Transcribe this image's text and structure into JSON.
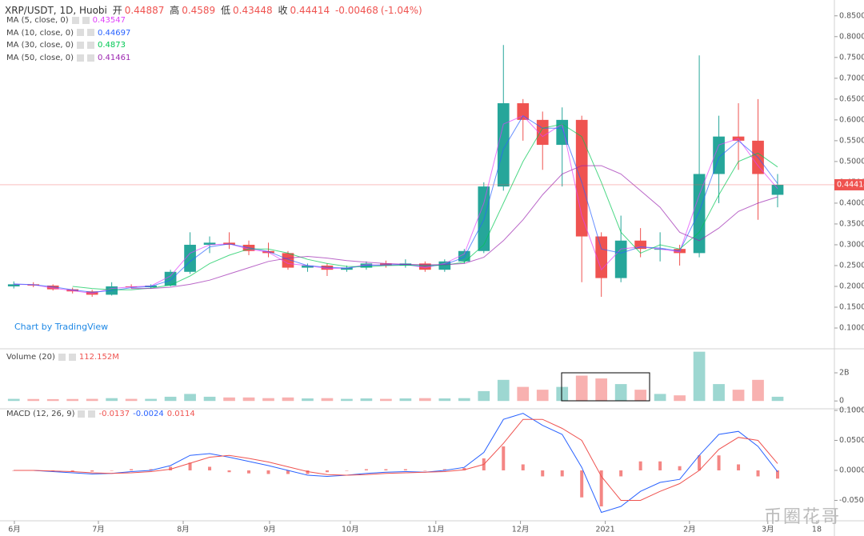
{
  "chart_data": [
    {
      "type": "candlestick",
      "header": {
        "title": "XRP/USDT, 1D, Huobi",
        "open_label": "开",
        "open": 0.44887,
        "high_label": "高",
        "high": 0.4589,
        "low_label": "低",
        "low": 0.43448,
        "close_label": "收",
        "close": 0.44414,
        "change": -0.00468,
        "change_pct": {
          "value": -1.04,
          "label": "(-1.04%)"
        },
        "color": "#ef5350"
      },
      "categories": [
        null,
        null,
        null,
        null,
        null,
        null,
        null,
        null,
        null,
        null,
        null,
        null,
        null,
        null,
        null,
        null,
        null,
        null,
        null,
        null,
        null,
        null,
        null,
        null,
        null,
        null,
        null,
        null,
        null,
        null,
        null,
        null,
        null,
        null,
        null,
        null,
        null,
        null,
        null,
        null
      ],
      "open": [
        0.2,
        0.205,
        0.202,
        0.193,
        0.188,
        0.18,
        0.2,
        0.198,
        0.202,
        0.235,
        0.3,
        0.305,
        0.3,
        0.285,
        0.28,
        0.245,
        0.25,
        0.24,
        0.245,
        0.255,
        0.25,
        0.255,
        0.24,
        0.26,
        0.285,
        0.44,
        0.64,
        0.6,
        0.54,
        0.6,
        0.32,
        0.22,
        0.31,
        0.29,
        0.29,
        0.28,
        0.47,
        0.56,
        0.55,
        0.42
      ],
      "high": [
        0.212,
        0.21,
        0.205,
        0.197,
        0.192,
        0.21,
        0.205,
        0.205,
        0.24,
        0.33,
        0.32,
        0.33,
        0.31,
        0.305,
        0.285,
        0.255,
        0.255,
        0.25,
        0.26,
        0.262,
        0.265,
        0.26,
        0.265,
        0.29,
        0.45,
        0.78,
        0.65,
        0.62,
        0.63,
        0.61,
        0.33,
        0.37,
        0.34,
        0.33,
        0.3,
        0.755,
        0.61,
        0.64,
        0.65,
        0.47
      ],
      "low": [
        0.195,
        0.198,
        0.19,
        0.183,
        0.175,
        0.178,
        0.195,
        0.195,
        0.2,
        0.23,
        0.28,
        0.29,
        0.275,
        0.27,
        0.24,
        0.235,
        0.225,
        0.235,
        0.24,
        0.245,
        0.245,
        0.235,
        0.235,
        0.255,
        0.28,
        0.43,
        0.55,
        0.48,
        0.44,
        0.21,
        0.175,
        0.21,
        0.27,
        0.26,
        0.25,
        0.27,
        0.4,
        0.48,
        0.36,
        0.39
      ],
      "close": [
        0.205,
        0.202,
        0.193,
        0.188,
        0.18,
        0.2,
        0.198,
        0.202,
        0.235,
        0.3,
        0.305,
        0.3,
        0.285,
        0.28,
        0.245,
        0.25,
        0.24,
        0.245,
        0.255,
        0.25,
        0.255,
        0.24,
        0.26,
        0.285,
        0.44,
        0.64,
        0.6,
        0.54,
        0.6,
        0.32,
        0.22,
        0.31,
        0.29,
        0.29,
        0.28,
        0.47,
        0.56,
        0.55,
        0.47,
        0.444
      ],
      "up_color": "#26a69a",
      "down_color": "#ef5350",
      "ma": [
        {
          "name": "MA (5, close, 0)",
          "last": 0.43547,
          "color": "#e040fb",
          "values": [
            0.205,
            0.204,
            0.196,
            0.19,
            0.183,
            0.195,
            0.199,
            0.201,
            0.225,
            0.28,
            0.3,
            0.302,
            0.29,
            0.282,
            0.255,
            0.25,
            0.243,
            0.244,
            0.252,
            0.251,
            0.253,
            0.245,
            0.255,
            0.278,
            0.4,
            0.59,
            0.61,
            0.56,
            0.59,
            0.37,
            0.24,
            0.29,
            0.295,
            0.29,
            0.283,
            0.42,
            0.54,
            0.555,
            0.49,
            0.435
          ]
        },
        {
          "name": "MA (10, close, 0)",
          "last": 0.44697,
          "color": "#2962ff",
          "values": [
            0.206,
            0.204,
            0.199,
            0.192,
            0.186,
            0.19,
            0.197,
            0.2,
            0.215,
            0.26,
            0.295,
            0.302,
            0.293,
            0.284,
            0.265,
            0.25,
            0.246,
            0.244,
            0.25,
            0.252,
            0.252,
            0.248,
            0.252,
            0.27,
            0.36,
            0.53,
            0.61,
            0.58,
            0.58,
            0.45,
            0.29,
            0.28,
            0.295,
            0.292,
            0.285,
            0.38,
            0.51,
            0.55,
            0.51,
            0.447
          ]
        },
        {
          "name": "MA (30, close, 0)",
          "last": 0.4873,
          "color": "#00c853",
          "values": [
            null,
            null,
            null,
            0.2,
            0.195,
            0.192,
            0.192,
            0.196,
            0.203,
            0.225,
            0.255,
            0.275,
            0.29,
            0.29,
            0.28,
            0.265,
            0.255,
            0.248,
            0.247,
            0.25,
            0.251,
            0.25,
            0.251,
            0.258,
            0.3,
            0.4,
            0.5,
            0.58,
            0.59,
            0.56,
            0.45,
            0.33,
            0.28,
            0.3,
            0.29,
            0.33,
            0.42,
            0.5,
            0.52,
            0.487
          ]
        },
        {
          "name": "MA (50, close, 0)",
          "last": 0.41461,
          "color": "#9c27b0",
          "values": [
            null,
            null,
            null,
            null,
            null,
            null,
            0.195,
            0.195,
            0.198,
            0.205,
            0.215,
            0.23,
            0.245,
            0.26,
            0.268,
            0.272,
            0.268,
            0.262,
            0.258,
            0.255,
            0.253,
            0.252,
            0.252,
            0.255,
            0.27,
            0.31,
            0.36,
            0.42,
            0.47,
            0.49,
            0.49,
            0.47,
            0.43,
            0.39,
            0.33,
            0.31,
            0.34,
            0.38,
            0.4,
            0.415
          ]
        }
      ],
      "xlim": [
        -0.5,
        41.9
      ],
      "xticks": [
        {
          "value": 0.03,
          "label": "6月"
        },
        {
          "value": 4.32,
          "label": "7月"
        },
        {
          "value": 8.65,
          "label": "8月"
        },
        {
          "value": 13.06,
          "label": "9月"
        },
        {
          "value": 17.18,
          "label": "10月"
        },
        {
          "value": 21.55,
          "label": "11月"
        },
        {
          "value": 25.87,
          "label": "12月"
        },
        {
          "value": 30.2,
          "label": "2021"
        },
        {
          "value": 34.5,
          "label": "2月"
        },
        {
          "value": 38.5,
          "label": "3月"
        },
        {
          "value": 41.0,
          "label": "18"
        }
      ],
      "ylim": [
        0.052,
        0.888
      ],
      "yticks": [
        {
          "value": 0.1,
          "label": "0.10000"
        },
        {
          "value": 0.15,
          "label": "0.15000"
        },
        {
          "value": 0.2,
          "label": "0.20000"
        },
        {
          "value": 0.25,
          "label": "0.25000"
        },
        {
          "value": 0.3,
          "label": "0.30000"
        },
        {
          "value": 0.35,
          "label": "0.35000"
        },
        {
          "value": 0.4,
          "label": "0.40000"
        },
        {
          "value": 0.45,
          "label": "0.45000"
        },
        {
          "value": 0.5,
          "label": "0.50000"
        },
        {
          "value": 0.55,
          "label": "0.55000"
        },
        {
          "value": 0.6,
          "label": "0.60000"
        },
        {
          "value": 0.65,
          "label": "0.65000"
        },
        {
          "value": 0.7,
          "label": "0.70000"
        },
        {
          "value": 0.75,
          "label": "0.75000"
        },
        {
          "value": 0.8,
          "label": "0.80000"
        },
        {
          "value": 0.85,
          "label": "0.85000"
        }
      ],
      "branding": "Chart by TradingView",
      "watermark": "币圈花哥"
    },
    {
      "type": "bar",
      "title": "Volume (20)",
      "last": {
        "value": 112152000,
        "label": "112.152M"
      },
      "last_color": "#ef5350",
      "values": [
        150000000,
        140000000,
        130000000,
        140000000,
        150000000,
        200000000,
        150000000,
        150000000,
        300000000,
        500000000,
        300000000,
        250000000,
        250000000,
        200000000,
        250000000,
        180000000,
        200000000,
        150000000,
        180000000,
        150000000,
        180000000,
        200000000,
        180000000,
        200000000,
        700000000,
        1500000000,
        1000000000,
        800000000,
        1000000000,
        1800000000,
        1600000000,
        1200000000,
        800000000,
        500000000,
        400000000,
        3500000000,
        1200000000,
        800000000,
        1500000000,
        300000000
      ],
      "ylim": [
        -500000000,
        3650000000
      ],
      "yticks": [
        0,
        {
          "value": 2000000000,
          "label": "2B"
        }
      ]
    },
    {
      "type": "macd",
      "title": "MACD (12, 26, 9)",
      "series": [
        {
          "color": "#ef5350",
          "last": -0.0137,
          "values": [
            0,
            0,
            -0.001,
            -0.002,
            -0.002,
            0,
            0.002,
            0.002,
            0.006,
            0.013,
            0.006,
            -0.003,
            -0.005,
            -0.006,
            -0.006,
            -0.006,
            -0.003,
            0,
            0.002,
            0.002,
            0.002,
            0,
            0.002,
            0.004,
            0.02,
            0.04,
            0.01,
            -0.01,
            -0.01,
            -0.045,
            -0.06,
            -0.01,
            0.015,
            0.015,
            0.007,
            0.025,
            0.025,
            0.01,
            -0.01,
            -0.0137
          ]
        },
        {
          "color": "#2962ff",
          "last": -0.0024,
          "values": [
            0,
            0,
            -0.002,
            -0.004,
            -0.006,
            -0.005,
            -0.002,
            0,
            0.008,
            0.025,
            0.028,
            0.022,
            0.015,
            0.008,
            0,
            -0.008,
            -0.01,
            -0.008,
            -0.005,
            -0.003,
            -0.002,
            -0.003,
            0,
            0.005,
            0.03,
            0.085,
            0.095,
            0.075,
            0.06,
            0.005,
            -0.07,
            -0.06,
            -0.035,
            -0.02,
            -0.015,
            0.025,
            0.06,
            0.065,
            0.04,
            -0.0024
          ]
        },
        {
          "color": "#ef5350",
          "last": 0.0114,
          "values": [
            0,
            0,
            -0.001,
            -0.002,
            -0.004,
            -0.005,
            -0.004,
            -0.002,
            0.002,
            0.012,
            0.022,
            0.025,
            0.02,
            0.014,
            0.006,
            -0.002,
            -0.007,
            -0.008,
            -0.007,
            -0.005,
            -0.004,
            -0.003,
            -0.002,
            0.001,
            0.01,
            0.045,
            0.085,
            0.085,
            0.07,
            0.05,
            -0.01,
            -0.05,
            -0.05,
            -0.035,
            -0.022,
            0,
            0.035,
            0.055,
            0.05,
            0.0114
          ]
        }
      ],
      "ylim": [
        -0.0827,
        0.1013
      ],
      "yticks": [
        {
          "value": -0.05,
          "label": "-0.0500"
        },
        {
          "value": 0,
          "label": "0.0000"
        },
        {
          "value": 0.05,
          "label": "0.0500"
        },
        {
          "value": 0.1,
          "label": "0.1000"
        }
      ]
    }
  ]
}
